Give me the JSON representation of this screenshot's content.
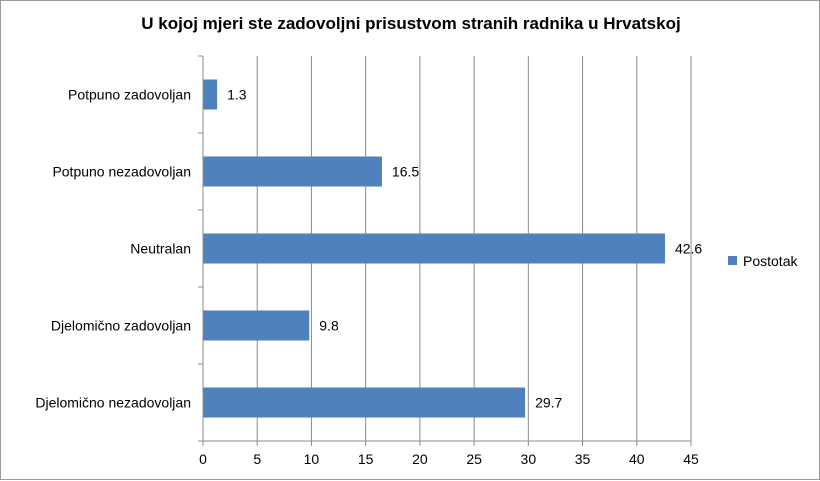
{
  "chart_data": {
    "type": "bar",
    "orientation": "horizontal",
    "title": "U kojoj mjeri ste zadovoljni prisustvom stranih radnika u Hrvatskoj",
    "categories": [
      "Potpuno zadovoljan",
      "Potpuno nezadovoljan",
      "Neutralan",
      "Djelomično zadovoljan",
      "Djelomično nezadovoljan"
    ],
    "series": [
      {
        "name": "Postotak",
        "values": [
          1.3,
          16.5,
          42.6,
          9.8,
          29.7
        ],
        "color": "#4f81bd"
      }
    ],
    "xlim": [
      0,
      45
    ],
    "xticks": [
      0,
      5,
      10,
      15,
      20,
      25,
      30,
      35,
      40,
      45
    ],
    "grid": true,
    "legend": "right",
    "xlabel": "",
    "ylabel": ""
  }
}
